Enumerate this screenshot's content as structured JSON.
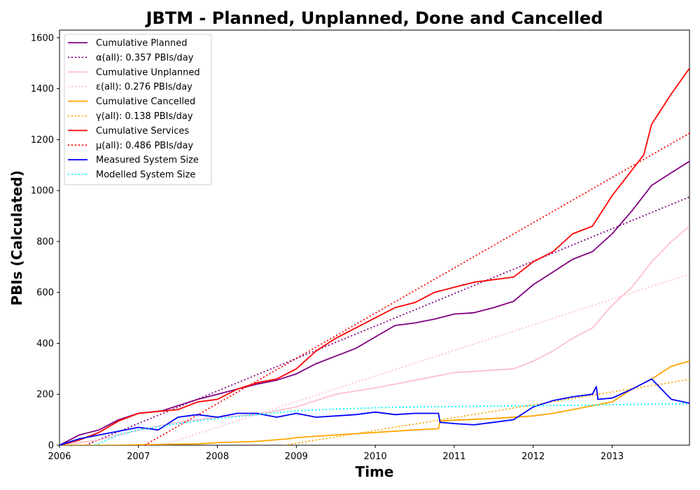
{
  "chart_data": {
    "type": "line",
    "title": "JBTM - Planned, Unplanned, Done  and Cancelled",
    "xlabel": "Time",
    "ylabel": "PBIs (Calculated)",
    "xlim": [
      2006.0,
      2013.98
    ],
    "ylim": [
      0,
      1630
    ],
    "xticks": [
      "2006",
      "2007",
      "2008",
      "2009",
      "2010",
      "2011",
      "2012",
      "2013"
    ],
    "yticks": [
      0,
      200,
      400,
      600,
      800,
      1000,
      1200,
      1400,
      1600
    ],
    "grid": false,
    "legend_position": "top-left",
    "series": [
      {
        "name": "Cumulative Planned",
        "color": "#800080",
        "style": "solid",
        "x": [
          2006.0,
          2006.25,
          2006.5,
          2006.75,
          2007.0,
          2007.3,
          2007.55,
          2007.75,
          2008.0,
          2008.25,
          2008.5,
          2008.75,
          2009.0,
          2009.25,
          2009.5,
          2009.75,
          2010.0,
          2010.25,
          2010.5,
          2010.75,
          2011.0,
          2011.25,
          2011.5,
          2011.75,
          2012.0,
          2012.25,
          2012.5,
          2012.75,
          2013.0,
          2013.25,
          2013.5,
          2013.75,
          2013.98
        ],
        "y": [
          0,
          40,
          60,
          100,
          125,
          135,
          160,
          180,
          200,
          220,
          240,
          255,
          280,
          320,
          350,
          380,
          425,
          470,
          480,
          495,
          515,
          520,
          540,
          565,
          630,
          680,
          730,
          760,
          830,
          920,
          1020,
          1070,
          1115
        ]
      },
      {
        "name": "α(all): 0.357 PBIs/day",
        "color": "#800080",
        "style": "dotted",
        "x": [
          2006.33,
          2013.98
        ],
        "y": [
          0,
          975
        ]
      },
      {
        "name": "Cumulative Unplanned",
        "color": "#ffc0cb",
        "style": "solid",
        "x": [
          2006.0,
          2006.5,
          2007.0,
          2007.5,
          2008.0,
          2008.5,
          2009.0,
          2009.5,
          2010.0,
          2010.5,
          2011.0,
          2011.5,
          2011.75,
          2012.0,
          2012.25,
          2012.5,
          2012.75,
          2013.0,
          2013.25,
          2013.5,
          2013.75,
          2013.98
        ],
        "y": [
          0,
          20,
          60,
          90,
          110,
          120,
          150,
          200,
          225,
          255,
          285,
          295,
          300,
          330,
          370,
          420,
          460,
          550,
          620,
          720,
          800,
          860
        ]
      },
      {
        "name": "ε(all): 0.276 PBIs/day",
        "color": "#ffc0cb",
        "style": "dotted",
        "x": [
          2007.3,
          2013.98
        ],
        "y": [
          0,
          672
        ]
      },
      {
        "name": "Cumulative Cancelled",
        "color": "#ffa500",
        "style": "solid",
        "x": [
          2006.0,
          2006.75,
          2007.0,
          2007.75,
          2008.0,
          2008.5,
          2008.9,
          2009.0,
          2009.5,
          2010.0,
          2010.5,
          2010.8,
          2010.82,
          2011.0,
          2011.5,
          2012.0,
          2012.25,
          2012.5,
          2012.75,
          2013.0,
          2013.25,
          2013.5,
          2013.75,
          2013.98
        ],
        "y": [
          0,
          0,
          2,
          5,
          10,
          15,
          25,
          30,
          40,
          50,
          60,
          65,
          95,
          98,
          105,
          115,
          125,
          140,
          155,
          170,
          220,
          260,
          310,
          330
        ]
      },
      {
        "name": "γ(all): 0.138 PBIs/day",
        "color": "#ffa500",
        "style": "dotted",
        "x": [
          2008.85,
          2013.98
        ],
        "y": [
          0,
          258
        ]
      },
      {
        "name": "Cumulative Services",
        "color": "#ff0000",
        "style": "solid",
        "x": [
          2006.0,
          2006.25,
          2006.5,
          2006.75,
          2007.0,
          2007.5,
          2007.75,
          2008.0,
          2008.25,
          2008.5,
          2008.75,
          2009.0,
          2009.25,
          2009.5,
          2009.75,
          2010.0,
          2010.25,
          2010.5,
          2010.75,
          2011.0,
          2011.25,
          2011.5,
          2011.75,
          2012.0,
          2012.25,
          2012.5,
          2012.75,
          2013.0,
          2013.25,
          2013.4,
          2013.5,
          2013.75,
          2013.98
        ],
        "y": [
          0,
          20,
          50,
          95,
          125,
          140,
          170,
          180,
          220,
          245,
          260,
          300,
          370,
          420,
          460,
          500,
          540,
          560,
          600,
          620,
          640,
          650,
          660,
          720,
          760,
          830,
          860,
          980,
          1080,
          1140,
          1260,
          1380,
          1480
        ]
      },
      {
        "name": "μ(all): 0.486 PBIs/day",
        "color": "#ff0000",
        "style": "dotted",
        "x": [
          2007.08,
          2013.98
        ],
        "y": [
          0,
          1225
        ]
      },
      {
        "name": "Measured System Size",
        "color": "#0000ff",
        "style": "solid",
        "x": [
          2006.0,
          2006.25,
          2006.5,
          2006.75,
          2007.0,
          2007.25,
          2007.5,
          2007.75,
          2008.0,
          2008.25,
          2008.5,
          2008.75,
          2009.0,
          2009.25,
          2009.5,
          2009.75,
          2010.0,
          2010.25,
          2010.5,
          2010.8,
          2010.82,
          2011.0,
          2011.25,
          2011.5,
          2011.75,
          2012.0,
          2012.25,
          2012.5,
          2012.75,
          2012.8,
          2012.82,
          2013.0,
          2013.25,
          2013.5,
          2013.75,
          2013.98
        ],
        "y": [
          0,
          25,
          40,
          55,
          70,
          60,
          110,
          120,
          110,
          125,
          125,
          110,
          125,
          110,
          115,
          120,
          130,
          120,
          125,
          125,
          90,
          85,
          80,
          90,
          100,
          150,
          175,
          190,
          200,
          230,
          180,
          185,
          220,
          260,
          180,
          165
        ]
      },
      {
        "name": "Modelled System Size",
        "color": "#00ffff",
        "style": "dotted",
        "x": [
          2006.45,
          2006.75,
          2007.0,
          2007.5,
          2008.0,
          2008.5,
          2009.0,
          2009.5,
          2010.0,
          2010.5,
          2011.0,
          2011.5,
          2012.0,
          2012.5,
          2013.0,
          2013.5,
          2013.98
        ],
        "y": [
          0,
          40,
          60,
          85,
          105,
          120,
          135,
          142,
          147,
          150,
          152,
          154,
          155,
          157,
          159,
          161,
          163
        ]
      }
    ]
  }
}
